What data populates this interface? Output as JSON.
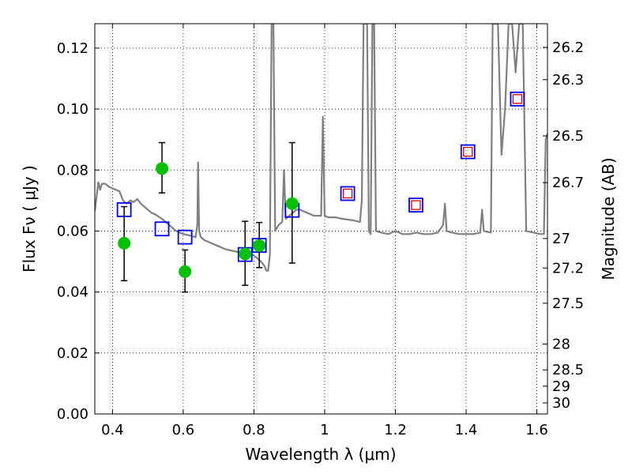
{
  "chart_data": {
    "type": "scatter",
    "title": "",
    "xlabel": "Wavelength  λ (μm)",
    "ylabel": "Flux  Fν  ( μJy )",
    "ylabel_right": "Magnitude (AB)",
    "xlim": [
      0.35,
      1.63
    ],
    "ylim": [
      0.0,
      0.128
    ],
    "grid": true,
    "x_ticks": [
      0.4,
      0.6,
      0.8,
      1.0,
      1.2,
      1.4,
      1.6
    ],
    "x_tick_labels": [
      "0.4",
      "0.6",
      "0.8",
      "1",
      "1.2",
      "1.4",
      "1.6"
    ],
    "y_ticks": [
      0.0,
      0.02,
      0.04,
      0.06,
      0.08,
      0.1,
      0.12
    ],
    "y_tick_labels": [
      "0.00",
      "0.02",
      "0.04",
      "0.06",
      "0.08",
      "0.10",
      "0.12"
    ],
    "right_ticks": [
      26.2,
      26.3,
      26.5,
      26.7,
      27,
      27.2,
      27.5,
      28,
      28.5,
      29,
      30
    ],
    "right_tick_labels": [
      "26.2",
      "26.3",
      "26.5",
      "26.7",
      "27",
      "27.2",
      "27.5",
      "28",
      "28.5",
      "29",
      "30"
    ],
    "colors": {
      "spectrum": "#808080",
      "observed": "#00c000",
      "model_box": "#0000ff",
      "model_inner": "#cc0000",
      "error_bar": "#000000"
    },
    "series": [
      {
        "kind": "line",
        "points": [
          [
            0.35,
            0.0665
          ],
          [
            0.36,
            0.076
          ],
          [
            0.365,
            0.0735
          ],
          [
            0.37,
            0.0755
          ],
          [
            0.38,
            0.0755
          ],
          [
            0.39,
            0.0745
          ],
          [
            0.4,
            0.074
          ],
          [
            0.41,
            0.0735
          ],
          [
            0.42,
            0.073
          ],
          [
            0.425,
            0.0715
          ],
          [
            0.43,
            0.07
          ],
          [
            0.44,
            0.069
          ],
          [
            0.45,
            0.07
          ],
          [
            0.46,
            0.0695
          ],
          [
            0.47,
            0.0705
          ],
          [
            0.48,
            0.069
          ],
          [
            0.49,
            0.068
          ],
          [
            0.5,
            0.067
          ],
          [
            0.51,
            0.066
          ],
          [
            0.52,
            0.0655
          ],
          [
            0.54,
            0.064
          ],
          [
            0.56,
            0.062
          ],
          [
            0.58,
            0.06
          ],
          [
            0.6,
            0.059
          ],
          [
            0.62,
            0.0585
          ],
          [
            0.635,
            0.058
          ],
          [
            0.64,
            0.062
          ],
          [
            0.642,
            0.0825
          ],
          [
            0.645,
            0.06
          ],
          [
            0.65,
            0.058
          ],
          [
            0.66,
            0.057
          ],
          [
            0.68,
            0.056
          ],
          [
            0.7,
            0.055
          ],
          [
            0.72,
            0.054
          ],
          [
            0.74,
            0.0535
          ],
          [
            0.76,
            0.053
          ],
          [
            0.78,
            0.0525
          ],
          [
            0.8,
            0.052
          ],
          [
            0.81,
            0.051
          ],
          [
            0.82,
            0.05
          ],
          [
            0.83,
            0.0485
          ],
          [
            0.835,
            0.047
          ],
          [
            0.84,
            0.047
          ],
          [
            0.845,
            0.052
          ],
          [
            0.85,
            0.128
          ],
          [
            0.855,
            0.128
          ],
          [
            0.86,
            0.06
          ],
          [
            0.87,
            0.062
          ],
          [
            0.88,
            0.063
          ],
          [
            0.885,
            0.08
          ],
          [
            0.89,
            0.064
          ],
          [
            0.9,
            0.065
          ],
          [
            0.91,
            0.066
          ],
          [
            0.92,
            0.067
          ],
          [
            0.93,
            0.067
          ],
          [
            0.94,
            0.0665
          ],
          [
            0.95,
            0.066
          ],
          [
            0.96,
            0.0655
          ],
          [
            0.97,
            0.065
          ],
          [
            0.98,
            0.065
          ],
          [
            0.99,
            0.065
          ],
          [
            0.995,
            0.0975
          ],
          [
            1.0,
            0.065
          ],
          [
            1.01,
            0.0645
          ],
          [
            1.03,
            0.0645
          ],
          [
            1.05,
            0.064
          ],
          [
            1.08,
            0.0635
          ],
          [
            1.1,
            0.063
          ],
          [
            1.105,
            0.07
          ],
          [
            1.11,
            0.128
          ],
          [
            1.12,
            0.128
          ],
          [
            1.125,
            0.06
          ],
          [
            1.13,
            0.059
          ],
          [
            1.135,
            0.128
          ],
          [
            1.14,
            0.128
          ],
          [
            1.145,
            0.06
          ],
          [
            1.16,
            0.0595
          ],
          [
            1.18,
            0.059
          ],
          [
            1.2,
            0.06
          ],
          [
            1.22,
            0.059
          ],
          [
            1.24,
            0.059
          ],
          [
            1.26,
            0.0595
          ],
          [
            1.28,
            0.059
          ],
          [
            1.3,
            0.059
          ],
          [
            1.32,
            0.0595
          ],
          [
            1.335,
            0.062
          ],
          [
            1.34,
            0.069
          ],
          [
            1.345,
            0.06
          ],
          [
            1.36,
            0.0595
          ],
          [
            1.38,
            0.059
          ],
          [
            1.4,
            0.059
          ],
          [
            1.42,
            0.059
          ],
          [
            1.44,
            0.0595
          ],
          [
            1.445,
            0.067
          ],
          [
            1.45,
            0.06
          ],
          [
            1.47,
            0.0595
          ],
          [
            1.475,
            0.128
          ],
          [
            1.49,
            0.128
          ],
          [
            1.5,
            0.085
          ],
          [
            1.51,
            0.1
          ],
          [
            1.52,
            0.128
          ],
          [
            1.53,
            0.128
          ],
          [
            1.54,
            0.112
          ],
          [
            1.55,
            0.128
          ],
          [
            1.56,
            0.128
          ],
          [
            1.57,
            0.06
          ],
          [
            1.59,
            0.0595
          ],
          [
            1.61,
            0.059
          ],
          [
            1.62,
            0.059
          ],
          [
            1.625,
            0.09
          ],
          [
            1.63,
            0.092
          ]
        ]
      },
      {
        "kind": "points",
        "points": [
          {
            "x": 0.433,
            "y": 0.056,
            "y_lo": 0.0437,
            "y_hi": 0.068
          },
          {
            "x": 0.54,
            "y": 0.0805,
            "y_lo": 0.0725,
            "y_hi": 0.089
          },
          {
            "x": 0.605,
            "y": 0.0467,
            "y_lo": 0.04,
            "y_hi": 0.0538
          },
          {
            "x": 0.775,
            "y": 0.0525,
            "y_lo": 0.0422,
            "y_hi": 0.0632
          },
          {
            "x": 0.815,
            "y": 0.0552,
            "y_lo": 0.048,
            "y_hi": 0.0628
          },
          {
            "x": 0.908,
            "y": 0.069,
            "y_lo": 0.0495,
            "y_hi": 0.089
          }
        ]
      },
      {
        "kind": "boxes",
        "points": [
          {
            "x": 0.433,
            "y": 0.067,
            "inner": false
          },
          {
            "x": 0.54,
            "y": 0.0607,
            "inner": false
          },
          {
            "x": 0.605,
            "y": 0.058,
            "inner": false
          },
          {
            "x": 0.775,
            "y": 0.0523,
            "inner": false
          },
          {
            "x": 0.815,
            "y": 0.0553,
            "inner": false
          },
          {
            "x": 0.908,
            "y": 0.0668,
            "inner": false
          },
          {
            "x": 1.065,
            "y": 0.0723,
            "inner": true
          },
          {
            "x": 1.258,
            "y": 0.0685,
            "inner": true
          },
          {
            "x": 1.405,
            "y": 0.086,
            "inner": true
          },
          {
            "x": 1.545,
            "y": 0.1033,
            "inner": true
          }
        ]
      }
    ]
  }
}
